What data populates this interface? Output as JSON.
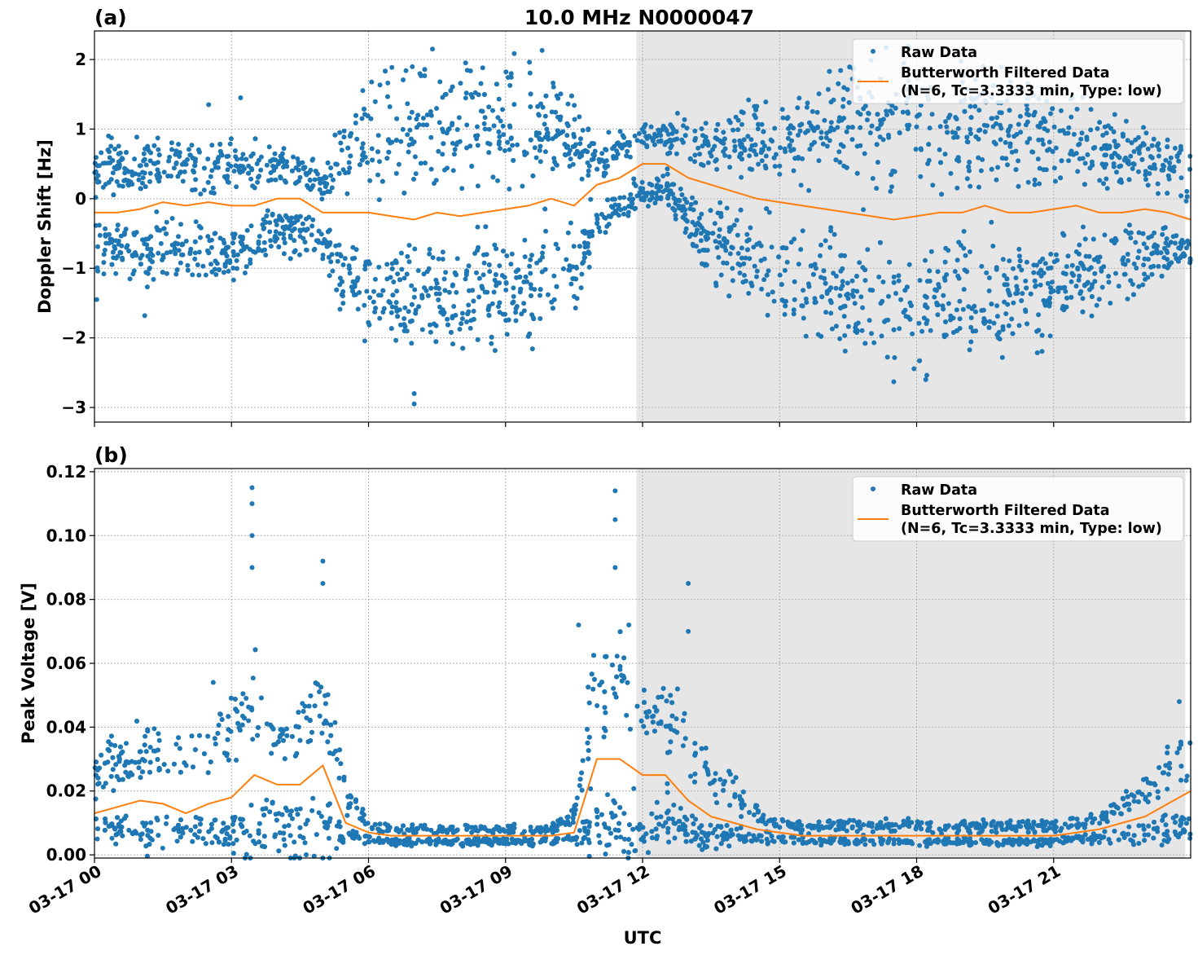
{
  "title": "10.0 MHz N0000047",
  "chart_data": [
    {
      "type": "scatter+line",
      "panel_label": "(a)",
      "ylabel": "Doppler Shift [Hz]",
      "xlabel": "",
      "ylim": [
        -3.21,
        2.41
      ],
      "yticks": [
        2,
        1,
        0,
        -1,
        -2,
        -3
      ],
      "ytick_labels": [
        "2",
        "1",
        "0",
        "−1",
        "−2",
        "−3"
      ],
      "grid": true,
      "legend": {
        "placement": "top-right",
        "entries": [
          "Raw Data",
          "Butterworth Filtered Data",
          "(N=6, Tc=3.3333 min, Type: low)"
        ]
      },
      "shaded_span": [
        "03-17 11:52",
        "03-17 23:53"
      ],
      "x": [
        "00:00",
        "00:30",
        "01:00",
        "01:30",
        "02:00",
        "02:30",
        "03:00",
        "03:30",
        "04:00",
        "04:30",
        "05:00",
        "05:30",
        "06:00",
        "06:30",
        "07:00",
        "07:30",
        "08:00",
        "08:30",
        "09:00",
        "09:30",
        "10:00",
        "10:30",
        "11:00",
        "11:30",
        "12:00",
        "12:30",
        "13:00",
        "13:30",
        "14:00",
        "14:30",
        "15:00",
        "15:30",
        "16:00",
        "16:30",
        "17:00",
        "17:30",
        "18:00",
        "18:30",
        "19:00",
        "19:30",
        "20:00",
        "20:30",
        "21:00",
        "21:30",
        "22:00",
        "22:30",
        "23:00",
        "23:30",
        "24:00"
      ],
      "series": [
        {
          "name": "Butterworth Filtered Data",
          "kind": "line",
          "values": [
            -0.2,
            -0.2,
            -0.15,
            -0.05,
            -0.1,
            -0.05,
            -0.1,
            -0.1,
            0.0,
            0.0,
            -0.2,
            -0.2,
            -0.2,
            -0.25,
            -0.3,
            -0.2,
            -0.25,
            -0.2,
            -0.15,
            -0.1,
            0.0,
            -0.1,
            0.2,
            0.3,
            0.5,
            0.5,
            0.3,
            0.2,
            0.1,
            0.0,
            -0.05,
            -0.1,
            -0.15,
            -0.2,
            -0.25,
            -0.3,
            -0.25,
            -0.2,
            -0.2,
            -0.1,
            -0.2,
            -0.2,
            -0.15,
            -0.1,
            -0.2,
            -0.2,
            -0.15,
            -0.2,
            -0.3
          ]
        },
        {
          "name": "Raw Data",
          "kind": "scatter-band",
          "low": [
            -0.8,
            -0.8,
            -0.8,
            -0.7,
            -0.8,
            -0.8,
            -0.8,
            -0.7,
            -0.5,
            -0.5,
            -0.6,
            -1.2,
            -1.3,
            -1.4,
            -1.4,
            -1.5,
            -1.4,
            -1.4,
            -1.4,
            -1.4,
            -1.2,
            -1.1,
            -0.4,
            -0.1,
            0.1,
            0.1,
            -0.3,
            -0.6,
            -0.8,
            -1.0,
            -1.1,
            -1.3,
            -1.4,
            -1.5,
            -1.6,
            -1.6,
            -1.6,
            -1.6,
            -1.5,
            -1.5,
            -1.4,
            -1.4,
            -1.3,
            -1.2,
            -1.1,
            -1.0,
            -0.9,
            -0.8,
            -0.8
          ],
          "high": [
            0.4,
            0.5,
            0.5,
            0.5,
            0.5,
            0.5,
            0.5,
            0.5,
            0.5,
            0.4,
            0.2,
            0.8,
            0.9,
            1.0,
            1.0,
            1.1,
            1.1,
            1.1,
            1.1,
            1.1,
            1.0,
            0.8,
            0.6,
            0.7,
            0.9,
            0.9,
            0.9,
            0.8,
            0.8,
            0.9,
            0.9,
            1.0,
            1.0,
            1.1,
            1.1,
            1.1,
            1.1,
            1.1,
            1.1,
            1.1,
            1.0,
            1.0,
            0.9,
            0.9,
            0.8,
            0.7,
            0.6,
            0.5,
            0.3
          ],
          "outliers": [
            [
              "07:24",
              2.15
            ],
            [
              "09:48",
              2.13
            ],
            [
              "07:00",
              -2.95
            ],
            [
              "07:00",
              -2.8
            ],
            [
              "18:12",
              -2.6
            ],
            [
              "17:30",
              -2.63
            ],
            [
              "02:30",
              1.35
            ],
            [
              "00:03",
              -1.45
            ],
            [
              "01:06",
              -1.68
            ],
            [
              "03:12",
              1.45
            ],
            [
              "08:30",
              1.88
            ]
          ]
        }
      ]
    },
    {
      "type": "scatter+line",
      "panel_label": "(b)",
      "ylabel": "Peak Voltage [V]",
      "xlabel": "UTC",
      "ylim": [
        -0.001,
        0.121
      ],
      "yticks": [
        0.12,
        0.1,
        0.08,
        0.06,
        0.04,
        0.02,
        0.0
      ],
      "ytick_labels": [
        "0.12",
        "0.10",
        "0.08",
        "0.06",
        "0.04",
        "0.02",
        "0.00"
      ],
      "xtick_labels": [
        "03-17 00",
        "03-17 03",
        "03-17 06",
        "03-17 09",
        "03-17 12",
        "03-17 15",
        "03-17 18",
        "03-17 21"
      ],
      "grid": true,
      "legend": {
        "placement": "top-right",
        "entries": [
          "Raw Data",
          "Butterworth Filtered Data",
          "(N=6, Tc=3.3333 min, Type: low)"
        ]
      },
      "shaded_span": [
        "03-17 11:52",
        "03-17 23:53"
      ],
      "x": [
        "00:00",
        "00:30",
        "01:00",
        "01:30",
        "02:00",
        "02:30",
        "03:00",
        "03:30",
        "04:00",
        "04:30",
        "05:00",
        "05:30",
        "06:00",
        "06:30",
        "07:00",
        "07:30",
        "08:00",
        "08:30",
        "09:00",
        "09:30",
        "10:00",
        "10:30",
        "11:00",
        "11:30",
        "12:00",
        "12:30",
        "13:00",
        "13:30",
        "14:00",
        "14:30",
        "15:00",
        "15:30",
        "16:00",
        "16:30",
        "17:00",
        "17:30",
        "18:00",
        "18:30",
        "19:00",
        "19:30",
        "20:00",
        "20:30",
        "21:00",
        "21:30",
        "22:00",
        "22:30",
        "23:00",
        "23:30",
        "24:00"
      ],
      "series": [
        {
          "name": "Butterworth Filtered Data",
          "kind": "line",
          "values": [
            0.013,
            0.015,
            0.017,
            0.016,
            0.013,
            0.016,
            0.018,
            0.025,
            0.022,
            0.022,
            0.028,
            0.01,
            0.007,
            0.006,
            0.006,
            0.006,
            0.006,
            0.006,
            0.006,
            0.006,
            0.006,
            0.007,
            0.03,
            0.03,
            0.025,
            0.025,
            0.017,
            0.012,
            0.01,
            0.008,
            0.007,
            0.006,
            0.006,
            0.006,
            0.006,
            0.006,
            0.006,
            0.006,
            0.006,
            0.006,
            0.006,
            0.006,
            0.006,
            0.007,
            0.008,
            0.01,
            0.012,
            0.016,
            0.02
          ]
        },
        {
          "name": "Raw Data",
          "kind": "scatter-band",
          "low": [
            0.007,
            0.007,
            0.007,
            0.007,
            0.007,
            0.007,
            0.007,
            0.006,
            0.007,
            0.007,
            0.008,
            0.006,
            0.005,
            0.004,
            0.004,
            0.004,
            0.004,
            0.004,
            0.004,
            0.004,
            0.004,
            0.005,
            0.008,
            0.009,
            0.009,
            0.009,
            0.007,
            0.006,
            0.006,
            0.005,
            0.005,
            0.004,
            0.004,
            0.004,
            0.004,
            0.004,
            0.004,
            0.004,
            0.004,
            0.004,
            0.004,
            0.004,
            0.004,
            0.005,
            0.005,
            0.006,
            0.006,
            0.007,
            0.008
          ],
          "high": [
            0.025,
            0.03,
            0.033,
            0.032,
            0.028,
            0.035,
            0.04,
            0.05,
            0.035,
            0.04,
            0.05,
            0.02,
            0.009,
            0.008,
            0.008,
            0.008,
            0.008,
            0.008,
            0.008,
            0.008,
            0.008,
            0.012,
            0.06,
            0.055,
            0.045,
            0.045,
            0.035,
            0.025,
            0.02,
            0.013,
            0.01,
            0.009,
            0.009,
            0.009,
            0.009,
            0.009,
            0.009,
            0.009,
            0.009,
            0.009,
            0.009,
            0.009,
            0.009,
            0.01,
            0.012,
            0.016,
            0.02,
            0.028,
            0.03
          ],
          "outliers": [
            [
              "03:27",
              0.115
            ],
            [
              "03:27",
              0.11
            ],
            [
              "03:27",
              0.1
            ],
            [
              "03:27",
              0.09
            ],
            [
              "05:00",
              0.092
            ],
            [
              "05:00",
              0.085
            ],
            [
              "11:24",
              0.114
            ],
            [
              "11:24",
              0.105
            ],
            [
              "11:24",
              0.09
            ],
            [
              "13:00",
              0.085
            ],
            [
              "13:00",
              0.07
            ],
            [
              "10:36",
              0.072
            ],
            [
              "11:42",
              0.072
            ],
            [
              "23:45",
              0.048
            ],
            [
              "02:36",
              0.054
            ]
          ]
        }
      ]
    }
  ]
}
